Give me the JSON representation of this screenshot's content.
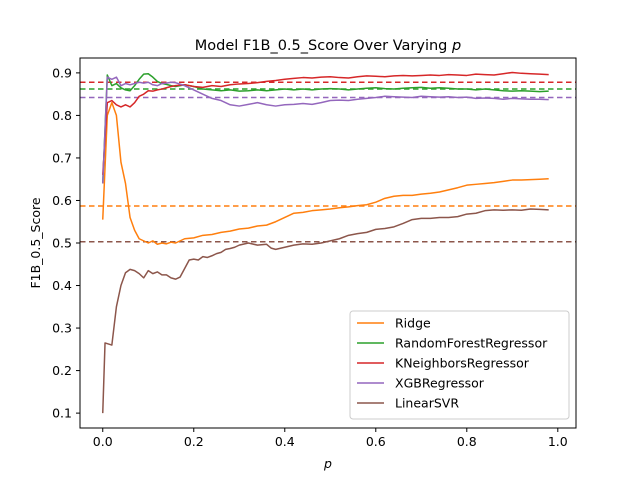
{
  "chart_data": {
    "type": "line",
    "title_prefix": "Model F1B_0.5_Score Over Varying ",
    "title_var": "p",
    "xlabel": "p",
    "ylabel": "F1B_0.5_Score",
    "xlim": [
      -0.05,
      1.04
    ],
    "ylim": [
      0.065,
      0.935
    ],
    "x_ticks": [
      0.0,
      0.2,
      0.4,
      0.6,
      0.8,
      1.0
    ],
    "x_tick_labels": [
      "0.0",
      "0.2",
      "0.4",
      "0.6",
      "0.8",
      "1.0"
    ],
    "y_ticks": [
      0.1,
      0.2,
      0.3,
      0.4,
      0.5,
      0.6,
      0.7,
      0.8,
      0.9
    ],
    "y_tick_labels": [
      "0.1",
      "0.2",
      "0.3",
      "0.4",
      "0.5",
      "0.6",
      "0.7",
      "0.8",
      "0.9"
    ],
    "grid": false,
    "legend_position": "lower-right",
    "series": [
      {
        "name": "Ridge",
        "color": "#ff7f0e",
        "baseline": 0.587,
        "points": [
          [
            0.0,
            0.555
          ],
          [
            0.01,
            0.8
          ],
          [
            0.02,
            0.83
          ],
          [
            0.03,
            0.8
          ],
          [
            0.04,
            0.69
          ],
          [
            0.05,
            0.64
          ],
          [
            0.06,
            0.56
          ],
          [
            0.07,
            0.53
          ],
          [
            0.08,
            0.51
          ],
          [
            0.09,
            0.505
          ],
          [
            0.1,
            0.5
          ],
          [
            0.11,
            0.505
          ],
          [
            0.12,
            0.497
          ],
          [
            0.13,
            0.5
          ],
          [
            0.14,
            0.498
          ],
          [
            0.15,
            0.502
          ],
          [
            0.16,
            0.5
          ],
          [
            0.17,
            0.505
          ],
          [
            0.18,
            0.51
          ],
          [
            0.2,
            0.512
          ],
          [
            0.22,
            0.518
          ],
          [
            0.24,
            0.52
          ],
          [
            0.26,
            0.525
          ],
          [
            0.28,
            0.528
          ],
          [
            0.3,
            0.533
          ],
          [
            0.32,
            0.535
          ],
          [
            0.34,
            0.54
          ],
          [
            0.36,
            0.542
          ],
          [
            0.38,
            0.55
          ],
          [
            0.4,
            0.56
          ],
          [
            0.42,
            0.57
          ],
          [
            0.44,
            0.572
          ],
          [
            0.46,
            0.576
          ],
          [
            0.48,
            0.578
          ],
          [
            0.5,
            0.58
          ],
          [
            0.52,
            0.583
          ],
          [
            0.54,
            0.585
          ],
          [
            0.56,
            0.588
          ],
          [
            0.58,
            0.59
          ],
          [
            0.6,
            0.596
          ],
          [
            0.62,
            0.605
          ],
          [
            0.64,
            0.61
          ],
          [
            0.66,
            0.612
          ],
          [
            0.68,
            0.612
          ],
          [
            0.7,
            0.615
          ],
          [
            0.72,
            0.617
          ],
          [
            0.74,
            0.62
          ],
          [
            0.76,
            0.625
          ],
          [
            0.78,
            0.63
          ],
          [
            0.8,
            0.636
          ],
          [
            0.82,
            0.638
          ],
          [
            0.84,
            0.64
          ],
          [
            0.86,
            0.642
          ],
          [
            0.88,
            0.645
          ],
          [
            0.9,
            0.648
          ],
          [
            0.92,
            0.648
          ],
          [
            0.94,
            0.649
          ],
          [
            0.96,
            0.65
          ],
          [
            0.98,
            0.651
          ]
        ]
      },
      {
        "name": "RandomForestRegressor",
        "color": "#2ca02c",
        "baseline": 0.862,
        "points": [
          [
            0.0,
            0.64
          ],
          [
            0.01,
            0.895
          ],
          [
            0.02,
            0.87
          ],
          [
            0.03,
            0.875
          ],
          [
            0.04,
            0.865
          ],
          [
            0.05,
            0.86
          ],
          [
            0.06,
            0.858
          ],
          [
            0.07,
            0.87
          ],
          [
            0.08,
            0.885
          ],
          [
            0.09,
            0.897
          ],
          [
            0.1,
            0.898
          ],
          [
            0.11,
            0.89
          ],
          [
            0.12,
            0.88
          ],
          [
            0.13,
            0.875
          ],
          [
            0.14,
            0.873
          ],
          [
            0.15,
            0.87
          ],
          [
            0.16,
            0.868
          ],
          [
            0.18,
            0.872
          ],
          [
            0.2,
            0.868
          ],
          [
            0.22,
            0.862
          ],
          [
            0.24,
            0.86
          ],
          [
            0.26,
            0.858
          ],
          [
            0.28,
            0.86
          ],
          [
            0.3,
            0.857
          ],
          [
            0.32,
            0.858
          ],
          [
            0.34,
            0.86
          ],
          [
            0.36,
            0.858
          ],
          [
            0.38,
            0.86
          ],
          [
            0.4,
            0.862
          ],
          [
            0.42,
            0.86
          ],
          [
            0.44,
            0.862
          ],
          [
            0.46,
            0.86
          ],
          [
            0.48,
            0.862
          ],
          [
            0.5,
            0.863
          ],
          [
            0.52,
            0.862
          ],
          [
            0.54,
            0.86
          ],
          [
            0.56,
            0.862
          ],
          [
            0.58,
            0.864
          ],
          [
            0.6,
            0.865
          ],
          [
            0.62,
            0.863
          ],
          [
            0.64,
            0.862
          ],
          [
            0.66,
            0.864
          ],
          [
            0.68,
            0.865
          ],
          [
            0.7,
            0.866
          ],
          [
            0.72,
            0.864
          ],
          [
            0.74,
            0.865
          ],
          [
            0.76,
            0.864
          ],
          [
            0.78,
            0.862
          ],
          [
            0.8,
            0.862
          ],
          [
            0.82,
            0.86
          ],
          [
            0.84,
            0.862
          ],
          [
            0.86,
            0.86
          ],
          [
            0.88,
            0.858
          ],
          [
            0.9,
            0.857
          ],
          [
            0.92,
            0.858
          ],
          [
            0.94,
            0.857
          ],
          [
            0.96,
            0.856
          ],
          [
            0.98,
            0.857
          ]
        ]
      },
      {
        "name": "KNeighborsRegressor",
        "color": "#d62728",
        "baseline": 0.878,
        "points": [
          [
            0.0,
            0.66
          ],
          [
            0.01,
            0.83
          ],
          [
            0.02,
            0.835
          ],
          [
            0.03,
            0.825
          ],
          [
            0.04,
            0.82
          ],
          [
            0.05,
            0.825
          ],
          [
            0.06,
            0.82
          ],
          [
            0.07,
            0.83
          ],
          [
            0.08,
            0.845
          ],
          [
            0.09,
            0.85
          ],
          [
            0.1,
            0.858
          ],
          [
            0.11,
            0.857
          ],
          [
            0.12,
            0.86
          ],
          [
            0.13,
            0.862
          ],
          [
            0.14,
            0.865
          ],
          [
            0.15,
            0.868
          ],
          [
            0.16,
            0.87
          ],
          [
            0.18,
            0.872
          ],
          [
            0.2,
            0.868
          ],
          [
            0.22,
            0.866
          ],
          [
            0.24,
            0.87
          ],
          [
            0.26,
            0.868
          ],
          [
            0.28,
            0.872
          ],
          [
            0.3,
            0.874
          ],
          [
            0.32,
            0.875
          ],
          [
            0.34,
            0.877
          ],
          [
            0.36,
            0.88
          ],
          [
            0.38,
            0.882
          ],
          [
            0.4,
            0.885
          ],
          [
            0.42,
            0.887
          ],
          [
            0.44,
            0.889
          ],
          [
            0.46,
            0.888
          ],
          [
            0.48,
            0.89
          ],
          [
            0.5,
            0.891
          ],
          [
            0.52,
            0.889
          ],
          [
            0.54,
            0.888
          ],
          [
            0.56,
            0.891
          ],
          [
            0.58,
            0.893
          ],
          [
            0.6,
            0.892
          ],
          [
            0.62,
            0.891
          ],
          [
            0.64,
            0.893
          ],
          [
            0.66,
            0.894
          ],
          [
            0.68,
            0.893
          ],
          [
            0.7,
            0.894
          ],
          [
            0.72,
            0.895
          ],
          [
            0.74,
            0.894
          ],
          [
            0.76,
            0.896
          ],
          [
            0.78,
            0.895
          ],
          [
            0.8,
            0.894
          ],
          [
            0.82,
            0.897
          ],
          [
            0.84,
            0.896
          ],
          [
            0.86,
            0.895
          ],
          [
            0.88,
            0.898
          ],
          [
            0.9,
            0.901
          ],
          [
            0.92,
            0.899
          ],
          [
            0.94,
            0.898
          ],
          [
            0.96,
            0.897
          ],
          [
            0.98,
            0.896
          ]
        ]
      },
      {
        "name": "XGBRegressor",
        "color": "#9467bd",
        "baseline": 0.842,
        "points": [
          [
            0.0,
            0.64
          ],
          [
            0.01,
            0.89
          ],
          [
            0.02,
            0.885
          ],
          [
            0.03,
            0.89
          ],
          [
            0.04,
            0.87
          ],
          [
            0.05,
            0.875
          ],
          [
            0.06,
            0.872
          ],
          [
            0.07,
            0.875
          ],
          [
            0.08,
            0.878
          ],
          [
            0.09,
            0.876
          ],
          [
            0.1,
            0.878
          ],
          [
            0.11,
            0.872
          ],
          [
            0.12,
            0.87
          ],
          [
            0.13,
            0.875
          ],
          [
            0.14,
            0.876
          ],
          [
            0.15,
            0.878
          ],
          [
            0.16,
            0.877
          ],
          [
            0.18,
            0.87
          ],
          [
            0.2,
            0.86
          ],
          [
            0.22,
            0.85
          ],
          [
            0.24,
            0.84
          ],
          [
            0.26,
            0.835
          ],
          [
            0.28,
            0.825
          ],
          [
            0.3,
            0.822
          ],
          [
            0.32,
            0.826
          ],
          [
            0.34,
            0.83
          ],
          [
            0.36,
            0.825
          ],
          [
            0.38,
            0.822
          ],
          [
            0.4,
            0.825
          ],
          [
            0.42,
            0.826
          ],
          [
            0.44,
            0.828
          ],
          [
            0.46,
            0.826
          ],
          [
            0.48,
            0.83
          ],
          [
            0.5,
            0.835
          ],
          [
            0.52,
            0.836
          ],
          [
            0.54,
            0.835
          ],
          [
            0.56,
            0.838
          ],
          [
            0.58,
            0.84
          ],
          [
            0.6,
            0.842
          ],
          [
            0.62,
            0.845
          ],
          [
            0.64,
            0.844
          ],
          [
            0.66,
            0.843
          ],
          [
            0.68,
            0.842
          ],
          [
            0.7,
            0.845
          ],
          [
            0.72,
            0.844
          ],
          [
            0.74,
            0.843
          ],
          [
            0.76,
            0.844
          ],
          [
            0.78,
            0.842
          ],
          [
            0.8,
            0.843
          ],
          [
            0.82,
            0.84
          ],
          [
            0.84,
            0.841
          ],
          [
            0.86,
            0.84
          ],
          [
            0.88,
            0.838
          ],
          [
            0.9,
            0.84
          ],
          [
            0.92,
            0.839
          ],
          [
            0.94,
            0.838
          ],
          [
            0.96,
            0.838
          ],
          [
            0.98,
            0.837
          ]
        ]
      },
      {
        "name": "LinearSVR",
        "color": "#8c564b",
        "baseline": 0.503,
        "points": [
          [
            0.0,
            0.1
          ],
          [
            0.005,
            0.265
          ],
          [
            0.02,
            0.26
          ],
          [
            0.03,
            0.35
          ],
          [
            0.04,
            0.4
          ],
          [
            0.05,
            0.43
          ],
          [
            0.06,
            0.438
          ],
          [
            0.07,
            0.435
          ],
          [
            0.08,
            0.428
          ],
          [
            0.09,
            0.418
          ],
          [
            0.1,
            0.435
          ],
          [
            0.11,
            0.428
          ],
          [
            0.12,
            0.432
          ],
          [
            0.13,
            0.425
          ],
          [
            0.14,
            0.425
          ],
          [
            0.15,
            0.418
          ],
          [
            0.16,
            0.415
          ],
          [
            0.17,
            0.42
          ],
          [
            0.18,
            0.44
          ],
          [
            0.19,
            0.46
          ],
          [
            0.2,
            0.462
          ],
          [
            0.21,
            0.46
          ],
          [
            0.22,
            0.468
          ],
          [
            0.23,
            0.466
          ],
          [
            0.24,
            0.47
          ],
          [
            0.25,
            0.475
          ],
          [
            0.26,
            0.478
          ],
          [
            0.27,
            0.485
          ],
          [
            0.28,
            0.487
          ],
          [
            0.29,
            0.49
          ],
          [
            0.3,
            0.495
          ],
          [
            0.32,
            0.5
          ],
          [
            0.34,
            0.495
          ],
          [
            0.36,
            0.497
          ],
          [
            0.37,
            0.488
          ],
          [
            0.38,
            0.485
          ],
          [
            0.4,
            0.49
          ],
          [
            0.42,
            0.495
          ],
          [
            0.44,
            0.498
          ],
          [
            0.46,
            0.497
          ],
          [
            0.48,
            0.5
          ],
          [
            0.5,
            0.505
          ],
          [
            0.52,
            0.51
          ],
          [
            0.54,
            0.518
          ],
          [
            0.56,
            0.522
          ],
          [
            0.58,
            0.525
          ],
          [
            0.6,
            0.532
          ],
          [
            0.62,
            0.534
          ],
          [
            0.64,
            0.538
          ],
          [
            0.66,
            0.546
          ],
          [
            0.68,
            0.555
          ],
          [
            0.7,
            0.558
          ],
          [
            0.72,
            0.558
          ],
          [
            0.74,
            0.56
          ],
          [
            0.76,
            0.56
          ],
          [
            0.78,
            0.562
          ],
          [
            0.8,
            0.568
          ],
          [
            0.82,
            0.57
          ],
          [
            0.84,
            0.576
          ],
          [
            0.86,
            0.578
          ],
          [
            0.88,
            0.577
          ],
          [
            0.9,
            0.578
          ],
          [
            0.92,
            0.577
          ],
          [
            0.94,
            0.58
          ],
          [
            0.96,
            0.579
          ],
          [
            0.98,
            0.578
          ]
        ]
      }
    ]
  }
}
